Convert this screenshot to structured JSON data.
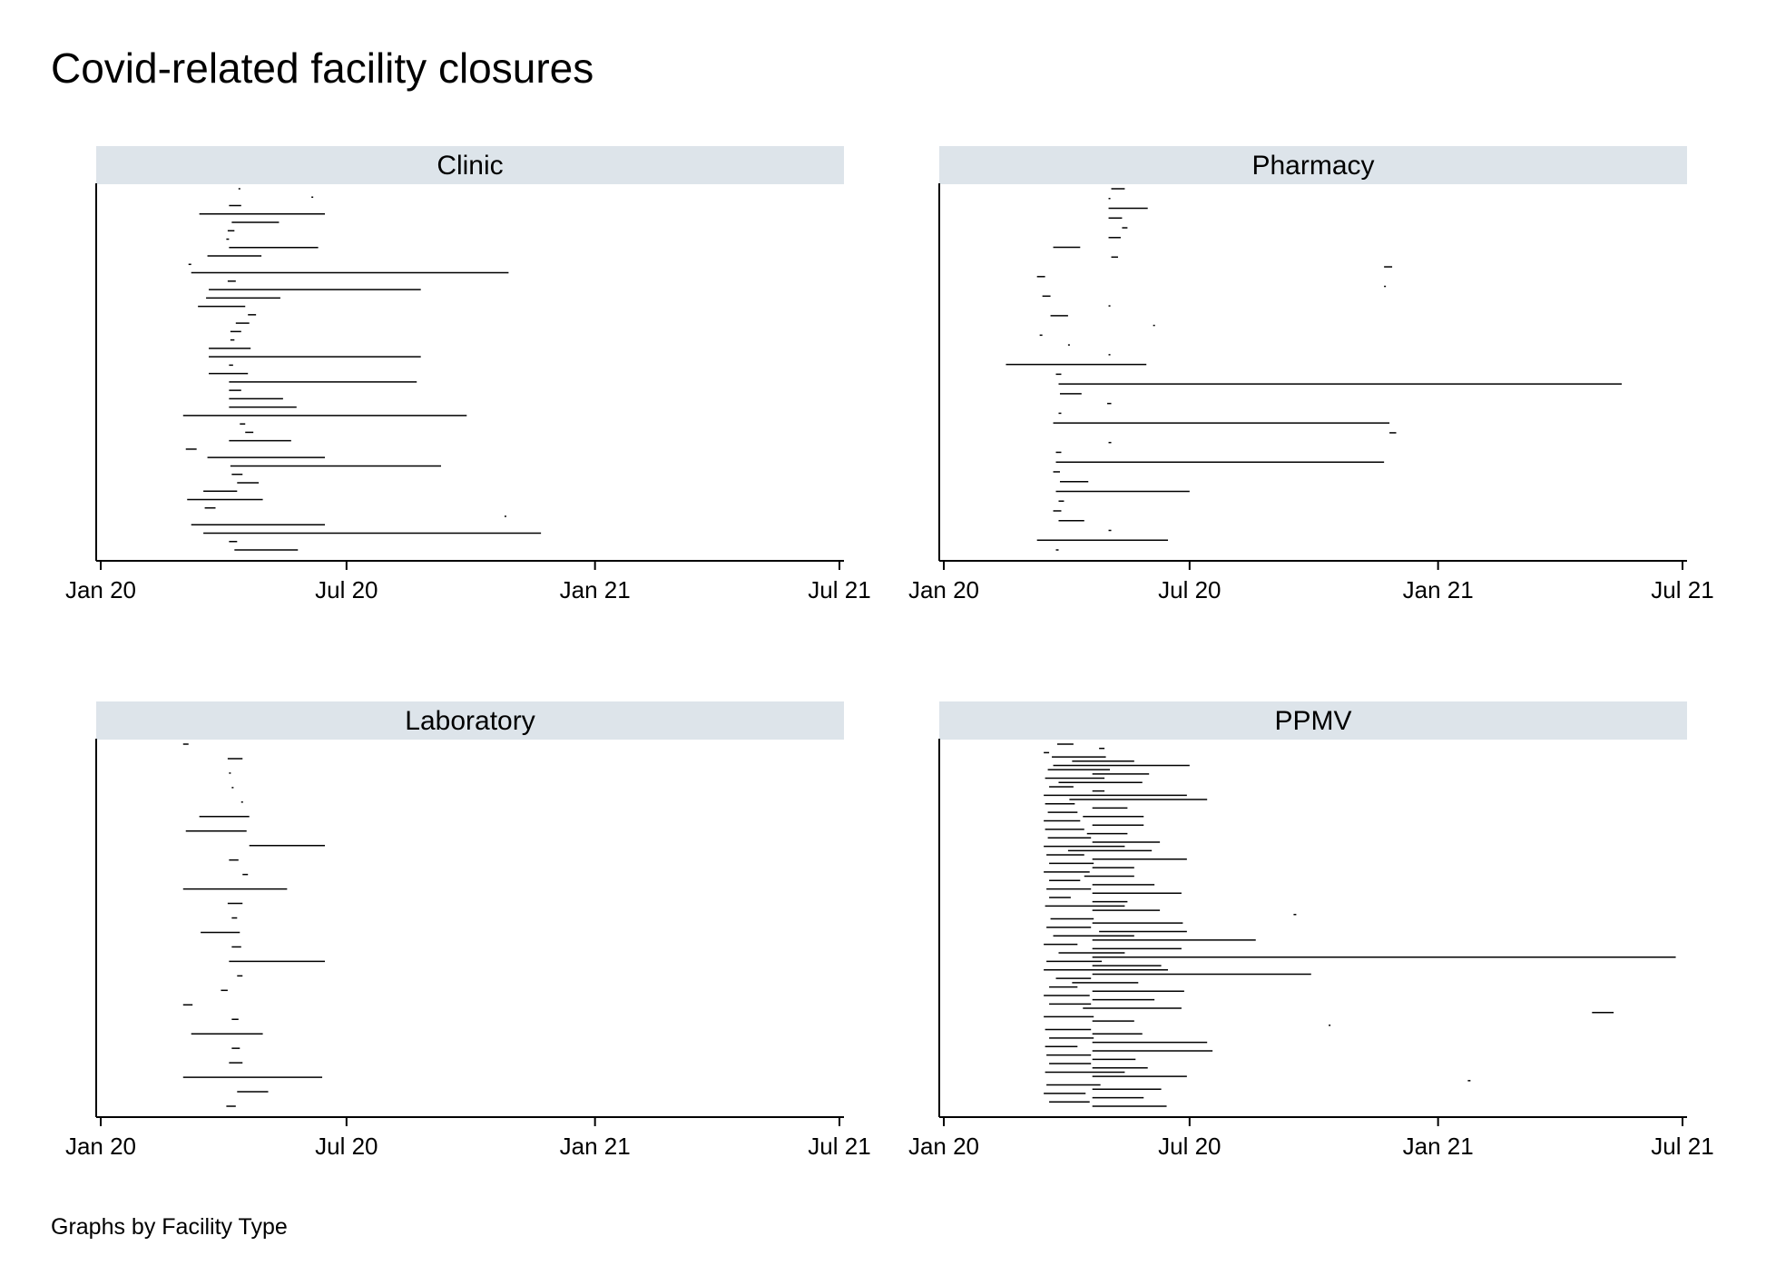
{
  "chart_data": {
    "type": "gantt",
    "title": "Covid-related facility closures",
    "note": "Graphs by Facility Type",
    "colors": {
      "header_bg": "#dde4ea",
      "bar": "#000000",
      "axis": "#000000"
    },
    "x_axis": {
      "range": [
        "2020-01-01",
        "2021-07-01"
      ],
      "ticks": [
        {
          "date": "2020-01-01",
          "label": "Jan 20"
        },
        {
          "date": "2020-07-01",
          "label": "Jul 20"
        },
        {
          "date": "2021-01-01",
          "label": "Jan 21"
        },
        {
          "date": "2021-07-01",
          "label": "Jul 21"
        }
      ]
    },
    "panels": [
      {
        "label": "Clinic",
        "closures": [
          [
            "2020-04-12",
            "2020-04-13"
          ],
          [
            "2020-06-05",
            "2020-06-06"
          ],
          [
            "2020-04-05",
            "2020-04-14"
          ],
          [
            "2020-03-14",
            "2020-06-15"
          ],
          [
            "2020-04-07",
            "2020-05-12"
          ],
          [
            "2020-04-04",
            "2020-04-09"
          ],
          [
            "2020-04-03",
            "2020-04-05"
          ],
          [
            "2020-04-05",
            "2020-06-10"
          ],
          [
            "2020-03-20",
            "2020-04-29"
          ],
          [
            "2020-03-06",
            "2020-03-08"
          ],
          [
            "2020-03-08",
            "2020-10-29"
          ],
          [
            "2020-04-04",
            "2020-04-10"
          ],
          [
            "2020-03-21",
            "2020-08-25"
          ],
          [
            "2020-03-19",
            "2020-05-13"
          ],
          [
            "2020-03-13",
            "2020-04-17"
          ],
          [
            "2020-04-19",
            "2020-04-25"
          ],
          [
            "2020-04-10",
            "2020-04-20"
          ],
          [
            "2020-04-06",
            "2020-04-14"
          ],
          [
            "2020-04-06",
            "2020-04-09"
          ],
          [
            "2020-03-21",
            "2020-04-21"
          ],
          [
            "2020-03-21",
            "2020-08-25"
          ],
          [
            "2020-04-05",
            "2020-04-08"
          ],
          [
            "2020-03-21",
            "2020-04-19"
          ],
          [
            "2020-04-05",
            "2020-08-22"
          ],
          [
            "2020-04-05",
            "2020-04-14"
          ],
          [
            "2020-04-05",
            "2020-05-15"
          ],
          [
            "2020-04-05",
            "2020-05-25"
          ],
          [
            "2020-03-02",
            "2020-09-28"
          ],
          [
            "2020-04-13",
            "2020-04-17"
          ],
          [
            "2020-04-17",
            "2020-04-23"
          ],
          [
            "2020-04-05",
            "2020-05-21"
          ],
          [
            "2020-03-04",
            "2020-03-12"
          ],
          [
            "2020-03-20",
            "2020-06-15"
          ],
          [
            "2020-04-06",
            "2020-09-09"
          ],
          [
            "2020-04-07",
            "2020-04-15"
          ],
          [
            "2020-04-11",
            "2020-04-27"
          ],
          [
            "2020-03-17",
            "2020-04-11"
          ],
          [
            "2020-03-05",
            "2020-04-30"
          ],
          [
            "2020-03-18",
            "2020-03-26"
          ],
          [
            "2020-10-26",
            "2020-10-27"
          ],
          [
            "2020-03-08",
            "2020-06-15"
          ],
          [
            "2020-03-17",
            "2020-11-22"
          ],
          [
            "2020-04-05",
            "2020-04-11"
          ],
          [
            "2020-04-09",
            "2020-05-26"
          ]
        ]
      },
      {
        "label": "Pharmacy",
        "closures": [
          [
            "2020-05-04",
            "2020-05-14"
          ],
          [
            "2020-05-02",
            "2020-05-03"
          ],
          [
            "2020-05-02",
            "2020-05-31"
          ],
          [
            "2020-05-02",
            "2020-05-12"
          ],
          [
            "2020-05-12",
            "2020-05-16"
          ],
          [
            "2020-05-02",
            "2020-05-11"
          ],
          [
            "2020-03-22",
            "2020-04-11"
          ],
          [
            "2020-05-04",
            "2020-05-09"
          ],
          [
            "2020-11-22",
            "2020-11-28"
          ],
          [
            "2020-03-10",
            "2020-03-16"
          ],
          [
            "2020-11-22",
            "2020-11-23"
          ],
          [
            "2020-03-14",
            "2020-03-20"
          ],
          [
            "2020-05-02",
            "2020-05-03"
          ],
          [
            "2020-03-20",
            "2020-04-02"
          ],
          [
            "2020-06-04",
            "2020-06-05"
          ],
          [
            "2020-03-12",
            "2020-03-14"
          ],
          [
            "2020-04-02",
            "2020-04-03"
          ],
          [
            "2020-05-02",
            "2020-05-03"
          ],
          [
            "2020-02-16",
            "2020-05-30"
          ],
          [
            "2020-03-24",
            "2020-03-28"
          ],
          [
            "2020-03-26",
            "2021-05-17"
          ],
          [
            "2020-03-27",
            "2020-04-12"
          ],
          [
            "2020-05-01",
            "2020-05-04"
          ],
          [
            "2020-03-26",
            "2020-03-28"
          ],
          [
            "2020-03-22",
            "2020-11-26"
          ],
          [
            "2020-11-26",
            "2020-12-01"
          ],
          [
            "2020-05-02",
            "2020-05-04"
          ],
          [
            "2020-03-24",
            "2020-03-28"
          ],
          [
            "2020-03-24",
            "2020-11-22"
          ],
          [
            "2020-03-22",
            "2020-03-27"
          ],
          [
            "2020-03-27",
            "2020-04-17"
          ],
          [
            "2020-03-24",
            "2020-07-01"
          ],
          [
            "2020-03-26",
            "2020-03-30"
          ],
          [
            "2020-03-22",
            "2020-03-28"
          ],
          [
            "2020-03-26",
            "2020-04-14"
          ],
          [
            "2020-05-02",
            "2020-05-04"
          ],
          [
            "2020-03-10",
            "2020-06-15"
          ],
          [
            "2020-03-24",
            "2020-03-26"
          ]
        ]
      },
      {
        "label": "Laboratory",
        "closures": [
          [
            "2020-03-02",
            "2020-03-06"
          ],
          [
            "2020-04-04",
            "2020-04-15"
          ],
          [
            "2020-04-05",
            "2020-04-06"
          ],
          [
            "2020-04-07",
            "2020-04-08"
          ],
          [
            "2020-04-14",
            "2020-04-15"
          ],
          [
            "2020-03-14",
            "2020-04-20"
          ],
          [
            "2020-03-04",
            "2020-04-18"
          ],
          [
            "2020-04-20",
            "2020-06-15"
          ],
          [
            "2020-04-05",
            "2020-04-12"
          ],
          [
            "2020-04-15",
            "2020-04-19"
          ],
          [
            "2020-03-02",
            "2020-05-18"
          ],
          [
            "2020-04-04",
            "2020-04-15"
          ],
          [
            "2020-04-07",
            "2020-04-11"
          ],
          [
            "2020-03-15",
            "2020-04-13"
          ],
          [
            "2020-04-07",
            "2020-04-14"
          ],
          [
            "2020-04-05",
            "2020-06-15"
          ],
          [
            "2020-04-11",
            "2020-04-15"
          ],
          [
            "2020-03-30",
            "2020-04-04"
          ],
          [
            "2020-03-02",
            "2020-03-09"
          ],
          [
            "2020-04-07",
            "2020-04-12"
          ],
          [
            "2020-03-08",
            "2020-04-30"
          ],
          [
            "2020-04-07",
            "2020-04-13"
          ],
          [
            "2020-04-05",
            "2020-04-15"
          ],
          [
            "2020-03-02",
            "2020-06-13"
          ],
          [
            "2020-04-11",
            "2020-05-04"
          ],
          [
            "2020-04-03",
            "2020-04-10"
          ]
        ]
      },
      {
        "label": "PPMV",
        "closures": [
          [
            "2020-03-25",
            "2020-04-06"
          ],
          [
            "2020-04-25",
            "2020-04-29"
          ],
          [
            "2020-03-15",
            "2020-03-19"
          ],
          [
            "2020-03-21",
            "2020-04-30"
          ],
          [
            "2020-04-05",
            "2020-05-21"
          ],
          [
            "2020-03-22",
            "2020-07-01"
          ],
          [
            "2020-03-18",
            "2020-05-03"
          ],
          [
            "2020-04-20",
            "2020-06-01"
          ],
          [
            "2020-03-16",
            "2020-04-29"
          ],
          [
            "2020-03-26",
            "2020-05-27"
          ],
          [
            "2020-03-19",
            "2020-04-06"
          ],
          [
            "2020-04-20",
            "2020-04-29"
          ],
          [
            "2020-03-15",
            "2020-06-29"
          ],
          [
            "2020-04-03",
            "2020-07-14"
          ],
          [
            "2020-03-16",
            "2020-04-07"
          ],
          [
            "2020-04-20",
            "2020-05-16"
          ],
          [
            "2020-03-18",
            "2020-04-09"
          ],
          [
            "2020-04-13",
            "2020-05-28"
          ],
          [
            "2020-03-15",
            "2020-04-11"
          ],
          [
            "2020-04-20",
            "2020-05-28"
          ],
          [
            "2020-03-16",
            "2020-04-14"
          ],
          [
            "2020-04-16",
            "2020-05-16"
          ],
          [
            "2020-03-18",
            "2020-04-19"
          ],
          [
            "2020-04-20",
            "2020-06-09"
          ],
          [
            "2020-03-15",
            "2020-05-14"
          ],
          [
            "2020-04-02",
            "2020-06-03"
          ],
          [
            "2020-03-17",
            "2020-04-14"
          ],
          [
            "2020-04-20",
            "2020-06-29"
          ],
          [
            "2020-03-19",
            "2020-04-21"
          ],
          [
            "2020-04-20",
            "2020-05-21"
          ],
          [
            "2020-03-15",
            "2020-04-18"
          ],
          [
            "2020-04-14",
            "2020-05-21"
          ],
          [
            "2020-03-19",
            "2020-04-11"
          ],
          [
            "2020-04-20",
            "2020-06-05"
          ],
          [
            "2020-03-17",
            "2020-04-19"
          ],
          [
            "2020-04-20",
            "2020-06-25"
          ],
          [
            "2020-03-19",
            "2020-04-04"
          ],
          [
            "2020-04-20",
            "2020-05-16"
          ],
          [
            "2020-03-16",
            "2020-05-14"
          ],
          [
            "2020-04-20",
            "2020-06-09"
          ],
          [
            "2020-09-16",
            "2020-09-18"
          ],
          [
            "2020-03-20",
            "2020-04-21"
          ],
          [
            "2020-04-20",
            "2020-06-26"
          ],
          [
            "2020-03-17",
            "2020-04-19"
          ],
          [
            "2020-04-25",
            "2020-06-29"
          ],
          [
            "2020-03-22",
            "2020-05-21"
          ],
          [
            "2020-04-20",
            "2020-08-19"
          ],
          [
            "2020-03-15",
            "2020-04-09"
          ],
          [
            "2020-04-20",
            "2020-06-25"
          ],
          [
            "2020-03-26",
            "2020-05-14"
          ],
          [
            "2020-04-20",
            "2021-06-26"
          ],
          [
            "2020-03-17",
            "2020-04-27"
          ],
          [
            "2020-04-20",
            "2020-06-10"
          ],
          [
            "2020-03-15",
            "2020-06-15"
          ],
          [
            "2020-04-20",
            "2020-09-29"
          ],
          [
            "2020-03-24",
            "2020-04-19"
          ],
          [
            "2020-04-05",
            "2020-05-24"
          ],
          [
            "2020-03-19",
            "2020-04-09"
          ],
          [
            "2020-04-20",
            "2020-06-27"
          ],
          [
            "2020-03-15",
            "2020-04-18"
          ],
          [
            "2020-04-20",
            "2020-06-05"
          ],
          [
            "2020-03-19",
            "2020-04-19"
          ],
          [
            "2020-04-13",
            "2020-06-25"
          ],
          [
            "2021-04-25",
            "2021-05-11"
          ],
          [
            "2020-03-15",
            "2020-04-21"
          ],
          [
            "2020-04-20",
            "2020-05-21"
          ],
          [
            "2020-10-12",
            "2020-10-13"
          ],
          [
            "2020-03-16",
            "2020-04-19"
          ],
          [
            "2020-04-20",
            "2020-05-27"
          ],
          [
            "2020-03-19",
            "2020-04-21"
          ],
          [
            "2020-04-20",
            "2020-07-14"
          ],
          [
            "2020-03-16",
            "2020-04-09"
          ],
          [
            "2020-04-20",
            "2020-07-18"
          ],
          [
            "2020-03-17",
            "2020-04-19"
          ],
          [
            "2020-04-20",
            "2020-05-22"
          ],
          [
            "2020-03-19",
            "2020-04-19"
          ],
          [
            "2020-04-20",
            "2020-05-31"
          ],
          [
            "2020-03-16",
            "2020-05-14"
          ],
          [
            "2020-04-20",
            "2020-06-29"
          ],
          [
            "2021-01-23",
            "2021-01-25"
          ],
          [
            "2020-03-17",
            "2020-04-26"
          ],
          [
            "2020-04-20",
            "2020-06-10"
          ],
          [
            "2020-03-15",
            "2020-04-15"
          ],
          [
            "2020-04-20",
            "2020-05-28"
          ],
          [
            "2020-03-19",
            "2020-04-18"
          ],
          [
            "2020-04-20",
            "2020-06-14"
          ]
        ]
      }
    ]
  }
}
